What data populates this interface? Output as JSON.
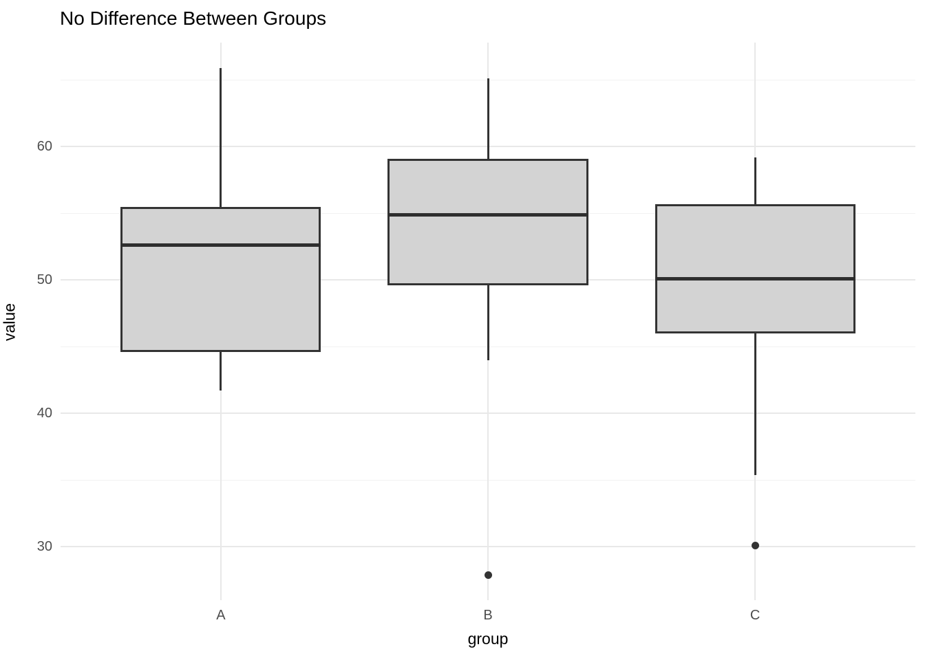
{
  "title": "No Difference Between Groups",
  "chart_data": {
    "type": "boxplot",
    "title": "No Difference Between Groups",
    "xlabel": "group",
    "ylabel": "value",
    "categories": [
      "A",
      "B",
      "C"
    ],
    "series": [
      {
        "name": "A",
        "whisker_low": 41.7,
        "q1": 44.6,
        "median": 52.6,
        "q3": 55.5,
        "whisker_high": 65.9,
        "outliers": []
      },
      {
        "name": "B",
        "whisker_low": 44.0,
        "q1": 49.6,
        "median": 54.9,
        "q3": 59.1,
        "whisker_high": 65.1,
        "outliers": [
          27.9
        ]
      },
      {
        "name": "C",
        "whisker_low": 35.4,
        "q1": 46.0,
        "median": 50.1,
        "q3": 55.7,
        "whisker_high": 59.2,
        "outliers": [
          30.1
        ]
      }
    ],
    "ylim": [
      26.0,
      67.8
    ],
    "y_major_ticks": [
      30,
      40,
      50,
      60
    ],
    "y_minor_gridlines": [
      35,
      45,
      55,
      65
    ],
    "grid": "on",
    "legend": "none"
  },
  "colors": {
    "background": "#ffffff",
    "box_fill": "#d3d3d3",
    "box_border": "#333333",
    "median": "#2e2e2e",
    "whisker": "#333333",
    "outlier": "#333333",
    "grid_major": "#e8e8e8",
    "grid_minor": "#f2f2f2",
    "tick_text": "#4d4d4d",
    "title_text": "#000000"
  }
}
